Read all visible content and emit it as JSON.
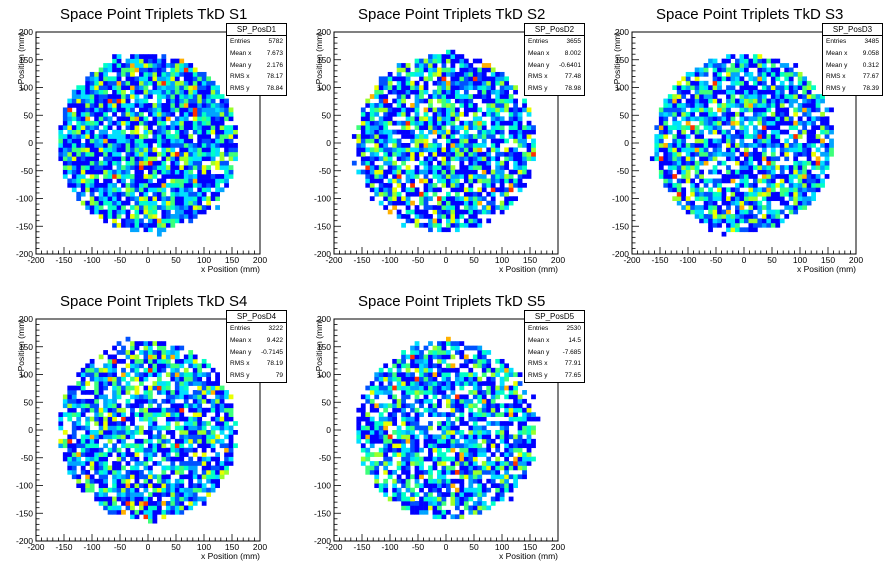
{
  "chart_data": [
    {
      "type": "heatmap",
      "title": "Space Point Triplets TkD S1",
      "xlabel": "x Position (mm)",
      "ylabel": "y Position (mm)",
      "xlim": [
        -200,
        200
      ],
      "ylim": [
        -200,
        200
      ],
      "xticks": [
        -200,
        -150,
        -100,
        -50,
        0,
        50,
        100,
        150,
        200
      ],
      "yticks": [
        -200,
        -150,
        -100,
        -50,
        0,
        50,
        100,
        150,
        200
      ],
      "stats": {
        "name": "SP_PosD1",
        "rows": [
          {
            "label": "Entries",
            "value": "5782"
          },
          {
            "label": "Mean x",
            "value": "7.673"
          },
          {
            "label": "Mean y",
            "value": "2.176"
          },
          {
            "label": "RMS x",
            "value": "78.17"
          },
          {
            "label": "RMS y",
            "value": "78.84"
          }
        ]
      },
      "entries": 5782,
      "mean_x": 7.673,
      "mean_y": 2.176,
      "rms_x": 78.17,
      "rms_y": 78.84,
      "radius": 160,
      "seed": 11
    },
    {
      "type": "heatmap",
      "title": "Space Point Triplets TkD S2",
      "xlabel": "x Position (mm)",
      "ylabel": "y Position (mm)",
      "xlim": [
        -200,
        200
      ],
      "ylim": [
        -200,
        200
      ],
      "xticks": [
        -200,
        -150,
        -100,
        -50,
        0,
        50,
        100,
        150,
        200
      ],
      "yticks": [
        -200,
        -150,
        -100,
        -50,
        0,
        50,
        100,
        150,
        200
      ],
      "stats": {
        "name": "SP_PosD2",
        "rows": [
          {
            "label": "Entries",
            "value": "3655"
          },
          {
            "label": "Mean x",
            "value": "8.002"
          },
          {
            "label": "Mean y",
            "value": "-0.6401"
          },
          {
            "label": "RMS x",
            "value": "77.48"
          },
          {
            "label": "RMS y",
            "value": "78.98"
          }
        ]
      },
      "entries": 3655,
      "mean_x": 8.002,
      "mean_y": -0.6401,
      "rms_x": 77.48,
      "rms_y": 78.98,
      "radius": 160,
      "seed": 23
    },
    {
      "type": "heatmap",
      "title": "Space Point Triplets TkD S3",
      "xlabel": "x Position (mm)",
      "ylabel": "y Position (mm)",
      "xlim": [
        -200,
        200
      ],
      "ylim": [
        -200,
        200
      ],
      "xticks": [
        -200,
        -150,
        -100,
        -50,
        0,
        50,
        100,
        150,
        200
      ],
      "yticks": [
        -200,
        -150,
        -100,
        -50,
        0,
        50,
        100,
        150,
        200
      ],
      "stats": {
        "name": "SP_PosD3",
        "rows": [
          {
            "label": "Entries",
            "value": "3485"
          },
          {
            "label": "Mean x",
            "value": "9.058"
          },
          {
            "label": "Mean y",
            "value": "0.312"
          },
          {
            "label": "RMS x",
            "value": "77.67"
          },
          {
            "label": "RMS y",
            "value": "78.39"
          }
        ]
      },
      "entries": 3485,
      "mean_x": 9.058,
      "mean_y": 0.312,
      "rms_x": 77.67,
      "rms_y": 78.39,
      "radius": 160,
      "seed": 37
    },
    {
      "type": "heatmap",
      "title": "Space Point Triplets TkD S4",
      "xlabel": "x Position (mm)",
      "ylabel": "y Position (mm)",
      "xlim": [
        -200,
        200
      ],
      "ylim": [
        -200,
        200
      ],
      "xticks": [
        -200,
        -150,
        -100,
        -50,
        0,
        50,
        100,
        150,
        200
      ],
      "yticks": [
        -200,
        -150,
        -100,
        -50,
        0,
        50,
        100,
        150,
        200
      ],
      "stats": {
        "name": "SP_PosD4",
        "rows": [
          {
            "label": "Entries",
            "value": "3222"
          },
          {
            "label": "Mean x",
            "value": "9.422"
          },
          {
            "label": "Mean y",
            "value": "-0.7145"
          },
          {
            "label": "RMS x",
            "value": "78.19"
          },
          {
            "label": "RMS y",
            "value": "79"
          }
        ]
      },
      "entries": 3222,
      "mean_x": 9.422,
      "mean_y": -0.7145,
      "rms_x": 78.19,
      "rms_y": 79,
      "radius": 160,
      "seed": 53
    },
    {
      "type": "heatmap",
      "title": "Space Point Triplets TkD S5",
      "xlabel": "x Position (mm)",
      "ylabel": "y Position (mm)",
      "xlim": [
        -200,
        200
      ],
      "ylim": [
        -200,
        200
      ],
      "xticks": [
        -200,
        -150,
        -100,
        -50,
        0,
        50,
        100,
        150,
        200
      ],
      "yticks": [
        -200,
        -150,
        -100,
        -50,
        0,
        50,
        100,
        150,
        200
      ],
      "stats": {
        "name": "SP_PosD5",
        "rows": [
          {
            "label": "Entries",
            "value": "2530"
          },
          {
            "label": "Mean x",
            "value": "14.5"
          },
          {
            "label": "Mean y",
            "value": "-7.685"
          },
          {
            "label": "RMS x",
            "value": "77.91"
          },
          {
            "label": "RMS y",
            "value": "77.65"
          }
        ]
      },
      "entries": 2530,
      "mean_x": 14.5,
      "mean_y": -7.685,
      "rms_x": 77.91,
      "rms_y": 77.65,
      "radius": 160,
      "seed": 71
    }
  ],
  "colors": {
    "palette": [
      "#0000ff",
      "#0052ff",
      "#00a4ff",
      "#00e0ff",
      "#00ffc8",
      "#3dff7a",
      "#9bff2b",
      "#e8ff00",
      "#ffb000",
      "#ff3000"
    ],
    "axis": "#000000",
    "background": "#ffffff"
  }
}
